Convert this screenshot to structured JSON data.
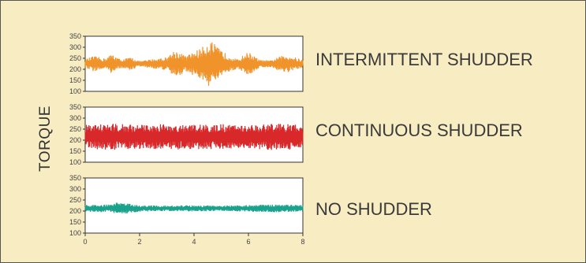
{
  "chart_data": {
    "type": "line",
    "ylabel": "TORQUE",
    "xlim": [
      0,
      8
    ],
    "ylim": [
      100,
      350
    ],
    "x_ticks": [
      "0",
      "2",
      "4",
      "6",
      "8"
    ],
    "y_ticks": [
      "350",
      "300",
      "250",
      "200",
      "150",
      "100"
    ],
    "grid": false,
    "series": [
      {
        "name": "INTERMITTENT SHUDDER",
        "color": "#f0932a",
        "mean": 225,
        "envelope_x": [
          0,
          0.3,
          0.7,
          1.0,
          1.3,
          1.7,
          2.0,
          2.5,
          3.0,
          3.3,
          3.7,
          4.0,
          4.3,
          4.6,
          4.9,
          5.2,
          5.6,
          6.0,
          6.4,
          6.8,
          7.2,
          7.5,
          7.8,
          8.0
        ],
        "envelope_amp": [
          20,
          35,
          25,
          45,
          20,
          30,
          12,
          22,
          30,
          65,
          35,
          55,
          75,
          110,
          70,
          45,
          20,
          55,
          18,
          15,
          35,
          40,
          25,
          20
        ]
      },
      {
        "name": "CONTINUOUS SHUDDER",
        "color": "#d8282a",
        "mean": 215,
        "envelope_x": [
          0,
          1,
          2,
          3,
          4,
          5,
          6,
          7,
          8
        ],
        "envelope_amp": [
          55,
          60,
          55,
          60,
          55,
          58,
          55,
          60,
          55
        ]
      },
      {
        "name": "NO SHUDDER",
        "color": "#1aa28c",
        "mean": 212,
        "envelope_x": [
          0,
          1,
          1.2,
          2,
          3,
          4,
          5,
          6,
          7,
          8
        ],
        "envelope_amp": [
          15,
          18,
          28,
          15,
          12,
          14,
          12,
          15,
          18,
          15
        ]
      }
    ]
  }
}
